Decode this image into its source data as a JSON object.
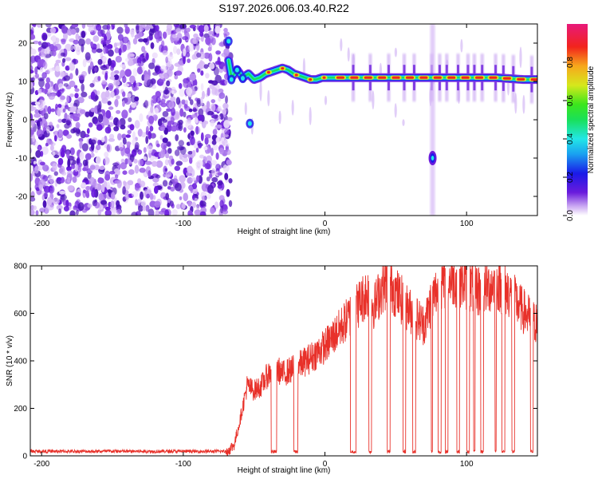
{
  "figure": {
    "title": "S197.2026.006.03.40.R22"
  },
  "colors": {
    "snr_line": "#e8312a",
    "speckle": "#7b2fe0",
    "frame": "#000000"
  },
  "chart_data": [
    {
      "type": "heatmap",
      "name": "spectrogram",
      "title": "S197.2026.006.03.40.R22",
      "xlabel": "Height of straight line (km)",
      "ylabel": "Frequency (Hz)",
      "xlim": [
        -208,
        150
      ],
      "ylim": [
        -25,
        25
      ],
      "xticks": [
        -200,
        -100,
        0,
        100
      ],
      "xtick_labels": [
        "-200",
        "-100",
        "0",
        "100"
      ],
      "yticks": [
        20,
        10,
        0,
        -10,
        -20
      ],
      "ytick_labels": [
        "20",
        "10",
        "0",
        "-10",
        "-20"
      ],
      "colorbar": {
        "label": "Normalized spectral amplitude",
        "range": [
          0.0,
          1.0
        ],
        "ticks": [
          0.0,
          0.2,
          0.4,
          0.6,
          0.8
        ],
        "tick_labels": [
          "0.0",
          "0.2",
          "0.4",
          "0.6",
          "0.8"
        ]
      },
      "noise_region_x": [
        -208,
        -70
      ],
      "carrier_ridge": {
        "x": [
          -70,
          -66,
          -62,
          -58,
          -54,
          -50,
          -46,
          -42,
          -38,
          -34,
          -30,
          -26,
          -22,
          -18,
          -14,
          -10,
          -6,
          -2,
          0,
          20,
          40,
          60,
          80,
          100,
          120,
          140,
          150
        ],
        "freq": [
          20,
          11,
          13,
          11,
          12,
          10.5,
          11,
          12,
          12.5,
          13,
          13.5,
          13,
          12,
          11.5,
          11,
          10.5,
          10.5,
          11,
          11,
          11,
          11,
          11,
          11,
          11,
          11,
          10.5,
          10.5
        ]
      },
      "secondary_blob": {
        "x": 76,
        "freq": -10
      }
    },
    {
      "type": "line",
      "name": "snr",
      "xlabel": "Height of straight line (km)",
      "ylabel": "SNR (10 * v/v)",
      "xlim": [
        -208,
        150
      ],
      "ylim": [
        0,
        800
      ],
      "xticks": [
        -200,
        -100,
        0,
        100
      ],
      "xtick_labels": [
        "-200",
        "-100",
        "0",
        "100"
      ],
      "yticks": [
        0,
        200,
        400,
        600,
        800
      ],
      "ytick_labels": [
        "0",
        "200",
        "400",
        "600",
        "800"
      ],
      "envelope": {
        "x": [
          -208,
          -70,
          -64,
          -60,
          -55,
          -50,
          -45,
          -40,
          -35,
          -30,
          -20,
          -10,
          0,
          10,
          20,
          25,
          30,
          35,
          40,
          45,
          50,
          60,
          70,
          75,
          80,
          90,
          100,
          110,
          120,
          130,
          140,
          150
        ],
        "y": [
          15,
          15,
          50,
          150,
          300,
          280,
          300,
          350,
          380,
          350,
          380,
          420,
          470,
          540,
          620,
          660,
          700,
          640,
          720,
          750,
          700,
          620,
          560,
          660,
          720,
          760,
          740,
          700,
          740,
          700,
          620,
          560
        ]
      },
      "dropout_intervals": [
        [
          -38,
          -34
        ],
        [
          -22,
          -19
        ],
        [
          18,
          22
        ],
        [
          31,
          33
        ],
        [
          44,
          46
        ],
        [
          55,
          57
        ],
        [
          62,
          64
        ],
        [
          75,
          76
        ],
        [
          80,
          82
        ],
        [
          85,
          87
        ],
        [
          93,
          95
        ],
        [
          100,
          102
        ],
        [
          105,
          106
        ],
        [
          110,
          112
        ],
        [
          120,
          121
        ],
        [
          125,
          127
        ],
        [
          132,
          134
        ],
        [
          145,
          147
        ]
      ]
    }
  ]
}
